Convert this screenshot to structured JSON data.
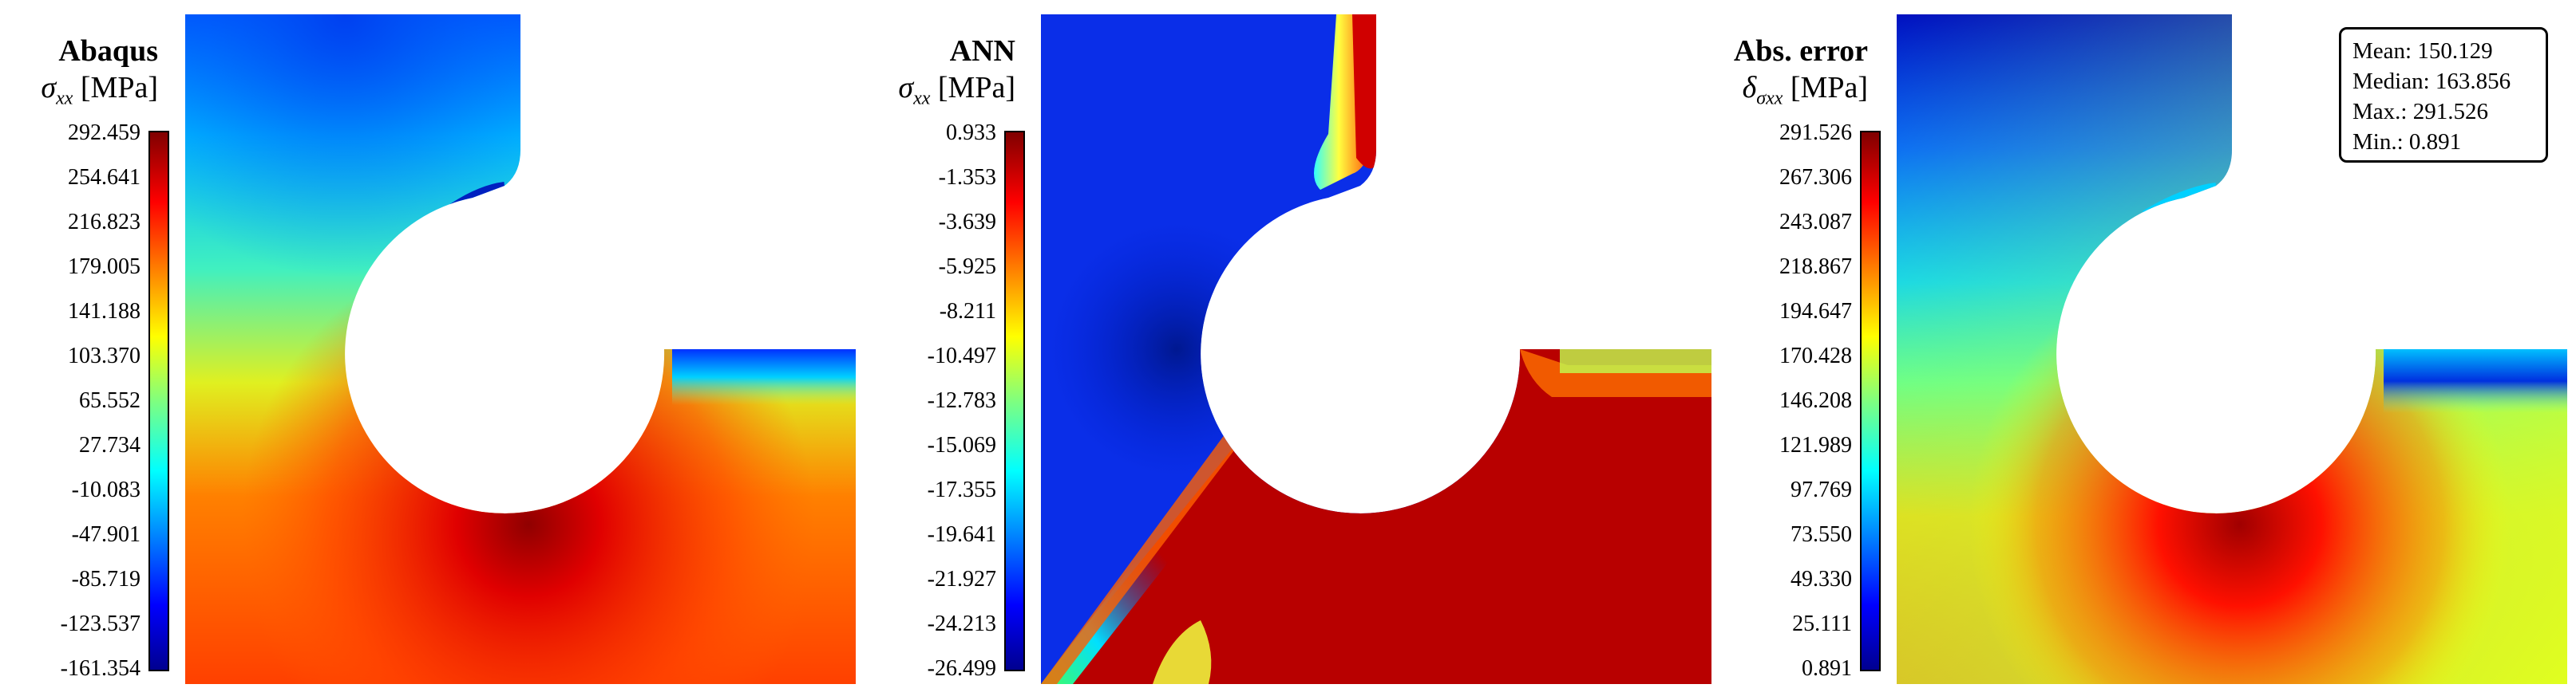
{
  "panels": [
    {
      "title": "Abaqus",
      "symbol": "σ",
      "subscript": "xx",
      "unit": "[MPa]",
      "ticks": [
        "292.459",
        "254.641",
        "216.823",
        "179.005",
        "141.188",
        "103.370",
        "65.552",
        "27.734",
        "-10.083",
        "-47.901",
        "-85.719",
        "-123.537",
        "-161.354"
      ]
    },
    {
      "title": "ANN",
      "symbol": "σ",
      "subscript": "xx",
      "unit": "[MPa]",
      "ticks": [
        "0.933",
        "-1.353",
        "-3.639",
        "-5.925",
        "-8.211",
        "-10.497",
        "-12.783",
        "-15.069",
        "-17.355",
        "-19.641",
        "-21.927",
        "-24.213",
        "-26.499"
      ]
    },
    {
      "title": "Abs. error",
      "symbol": "δ",
      "subscript": "σxx",
      "unit": "[MPa]",
      "ticks": [
        "291.526",
        "267.306",
        "243.087",
        "218.867",
        "194.647",
        "170.428",
        "146.208",
        "121.989",
        "97.769",
        "73.550",
        "49.330",
        "25.111",
        "0.891"
      ]
    }
  ],
  "stats": {
    "mean": "Mean: 150.129",
    "median": "Median: 163.856",
    "max": "Max.: 291.526",
    "min": "Min.: 0.891"
  },
  "colormap": "jet"
}
